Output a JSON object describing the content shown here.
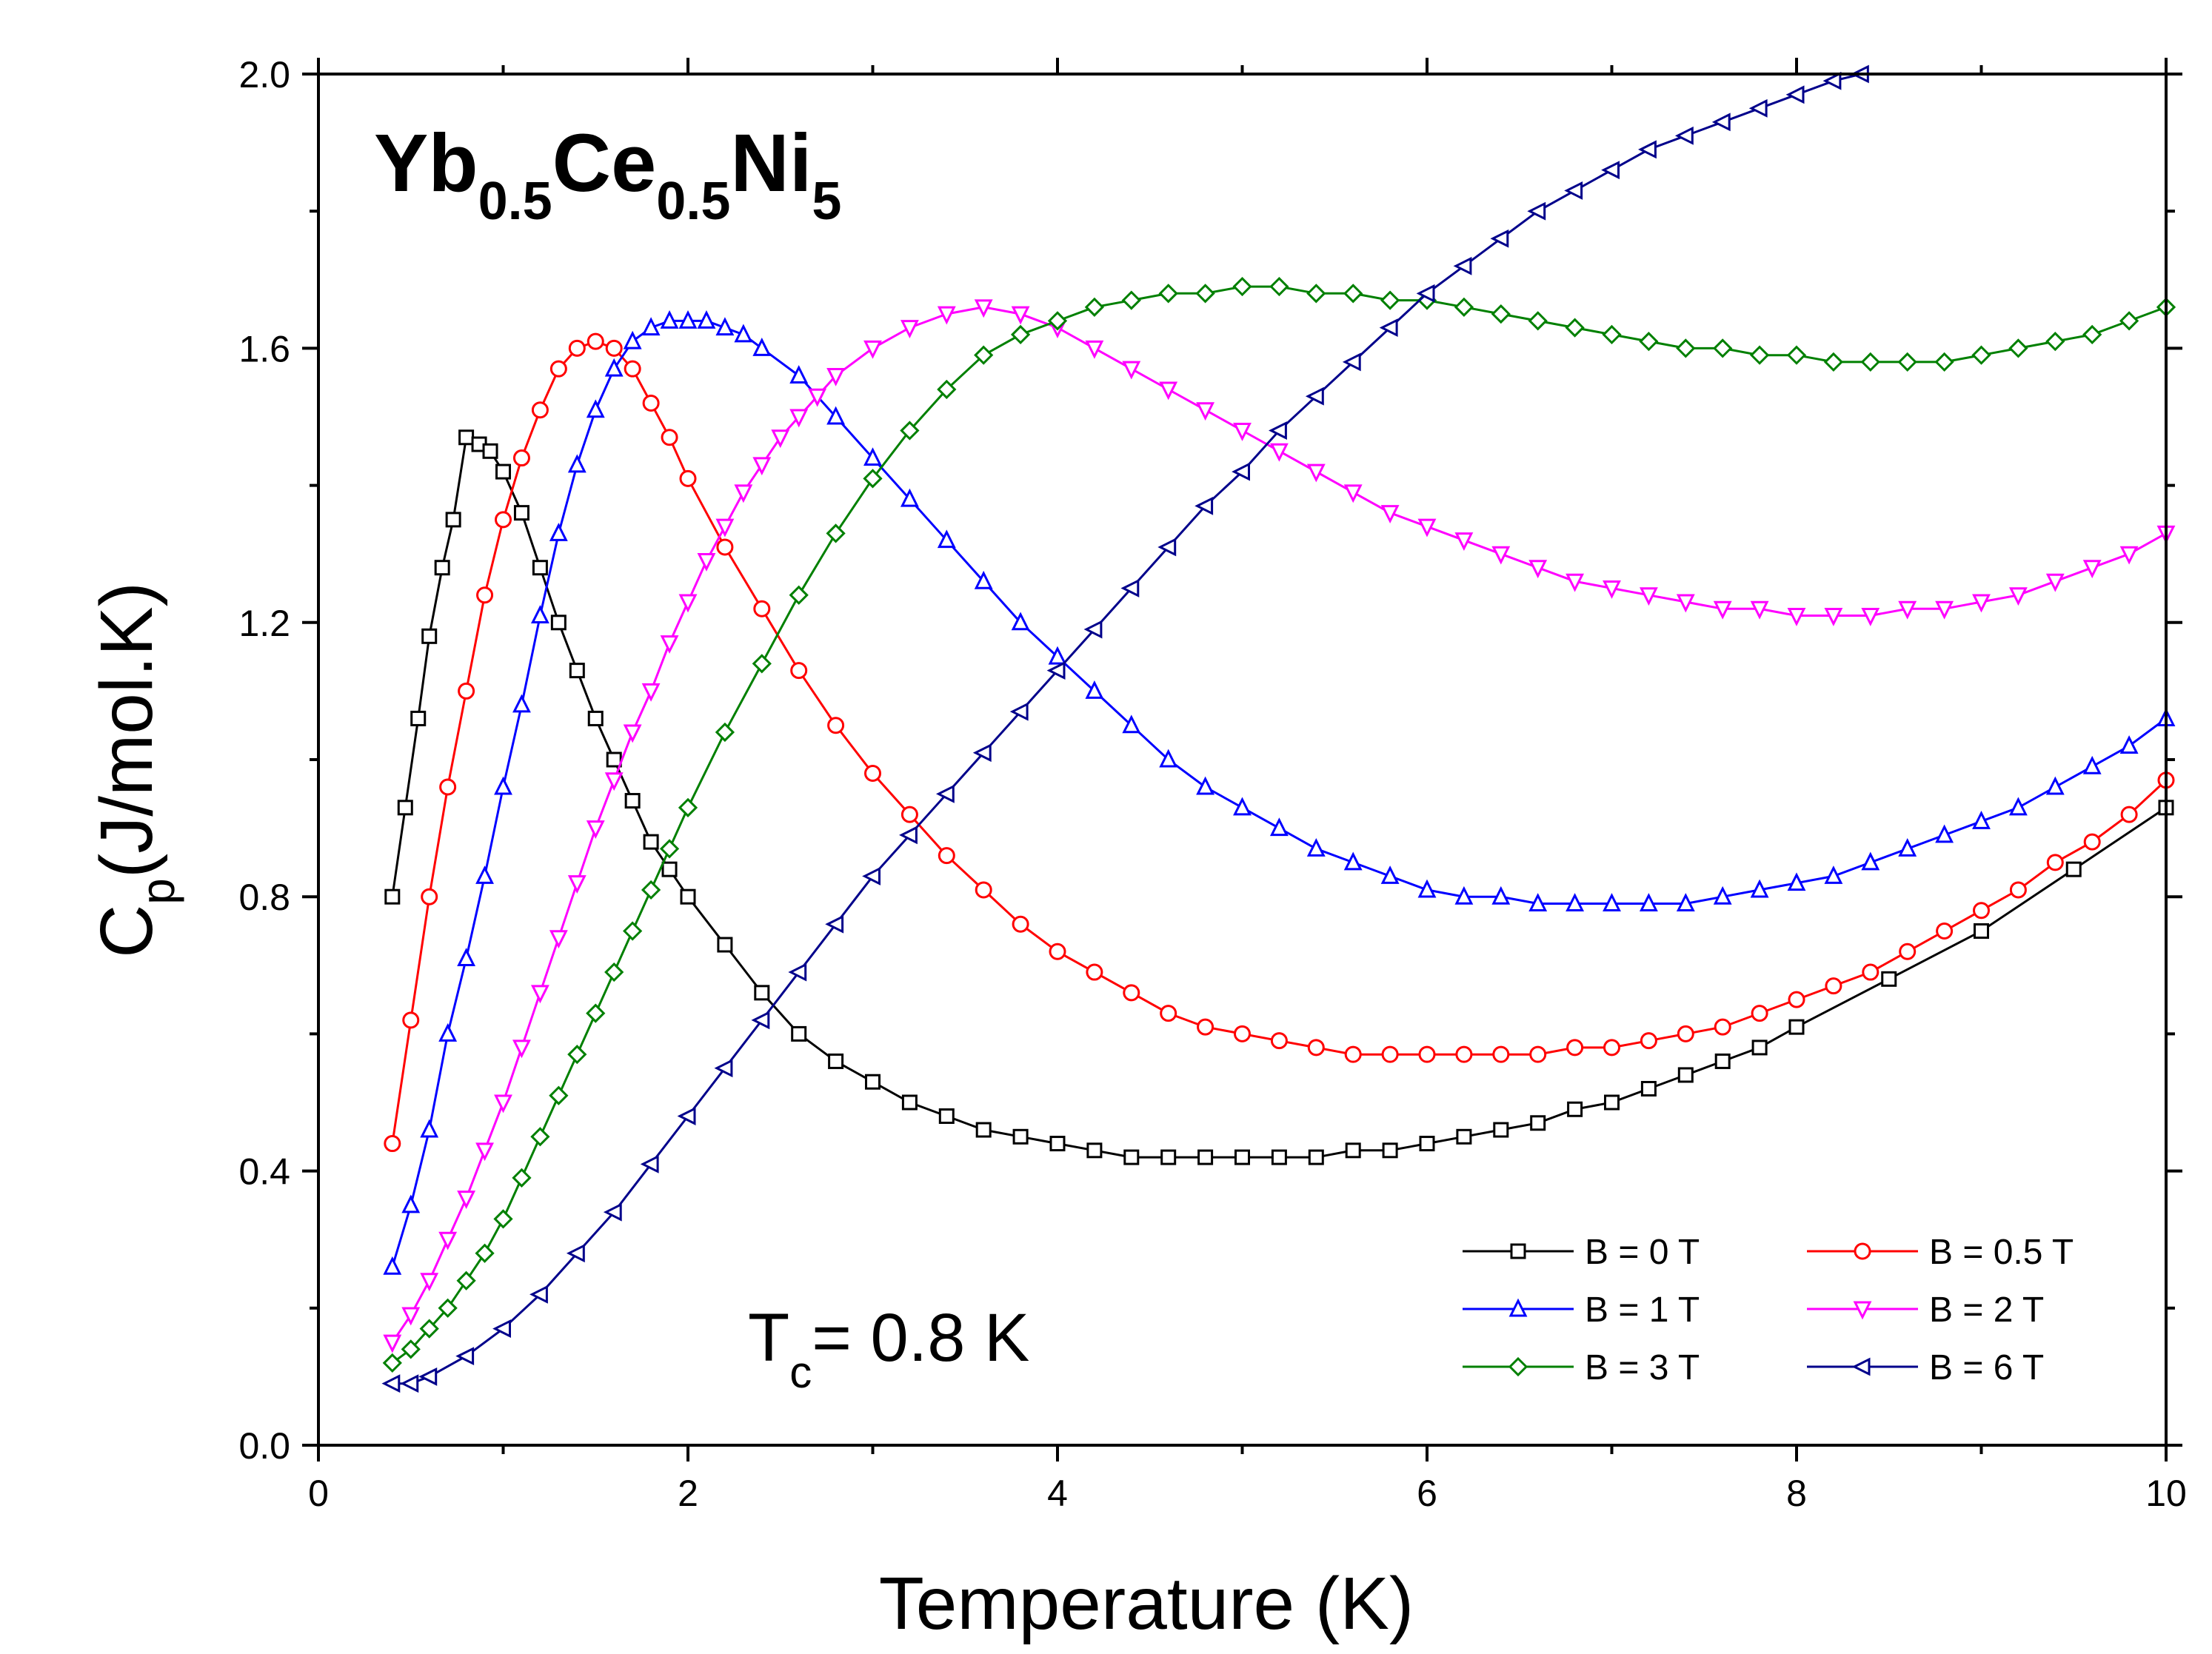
{
  "chart_data": {
    "type": "line",
    "title": "",
    "compound": {
      "base": [
        "Yb",
        "Ce",
        "Ni"
      ],
      "subscripts": [
        "0.5",
        "0.5",
        "5"
      ]
    },
    "annotation": {
      "prefix": "T",
      "subscript": "c",
      "suffix": "= 0.8 K"
    },
    "xlabel": "Temperature (K)",
    "ylabel": {
      "main": "C",
      "subscript": "p",
      "units": "(J/mol.K)"
    },
    "xlim": [
      0,
      10
    ],
    "ylim": [
      0,
      2.0
    ],
    "xticks": [
      0,
      2,
      4,
      6,
      8,
      10
    ],
    "yticks": [
      0.0,
      0.4,
      0.8,
      1.2,
      1.6,
      2.0
    ],
    "ytick_labels": [
      "0.0",
      "0.4",
      "0.8",
      "1.2",
      "1.6",
      "2.0"
    ],
    "xtick_labels": [
      "0",
      "2",
      "4",
      "6",
      "8",
      "10"
    ],
    "legend_position": "bottom-right",
    "series": [
      {
        "name": "B = 0 T",
        "color": "#000000",
        "marker": "square",
        "x": [
          0.4,
          0.47,
          0.54,
          0.6,
          0.67,
          0.73,
          0.8,
          0.87,
          0.93,
          1.0,
          1.1,
          1.2,
          1.3,
          1.4,
          1.5,
          1.6,
          1.7,
          1.8,
          1.9,
          2.0,
          2.2,
          2.4,
          2.6,
          2.8,
          3.0,
          3.2,
          3.4,
          3.6,
          3.8,
          4.0,
          4.2,
          4.4,
          4.6,
          4.8,
          5.0,
          5.2,
          5.4,
          5.6,
          5.8,
          6.0,
          6.2,
          6.4,
          6.6,
          6.8,
          7.0,
          7.2,
          7.4,
          7.6,
          7.8,
          8.0,
          8.5,
          9.0,
          9.5,
          10.0
        ],
        "y": [
          0.8,
          0.93,
          1.06,
          1.18,
          1.28,
          1.35,
          1.47,
          1.46,
          1.45,
          1.42,
          1.36,
          1.28,
          1.2,
          1.13,
          1.06,
          1.0,
          0.94,
          0.88,
          0.84,
          0.8,
          0.73,
          0.66,
          0.6,
          0.56,
          0.53,
          0.5,
          0.48,
          0.46,
          0.45,
          0.44,
          0.43,
          0.42,
          0.42,
          0.42,
          0.42,
          0.42,
          0.42,
          0.43,
          0.43,
          0.44,
          0.45,
          0.46,
          0.47,
          0.49,
          0.5,
          0.52,
          0.54,
          0.56,
          0.58,
          0.61,
          0.68,
          0.75,
          0.84,
          0.93
        ]
      },
      {
        "name": "B = 0.5 T",
        "color": "#ff0000",
        "marker": "circle",
        "x": [
          0.4,
          0.5,
          0.6,
          0.7,
          0.8,
          0.9,
          1.0,
          1.1,
          1.2,
          1.3,
          1.4,
          1.5,
          1.6,
          1.7,
          1.8,
          1.9,
          2.0,
          2.2,
          2.4,
          2.6,
          2.8,
          3.0,
          3.2,
          3.4,
          3.6,
          3.8,
          4.0,
          4.2,
          4.4,
          4.6,
          4.8,
          5.0,
          5.2,
          5.4,
          5.6,
          5.8,
          6.0,
          6.2,
          6.4,
          6.6,
          6.8,
          7.0,
          7.2,
          7.4,
          7.6,
          7.8,
          8.0,
          8.2,
          8.4,
          8.6,
          8.8,
          9.0,
          9.2,
          9.4,
          9.6,
          9.8,
          10.0
        ],
        "y": [
          0.44,
          0.62,
          0.8,
          0.96,
          1.1,
          1.24,
          1.35,
          1.44,
          1.51,
          1.57,
          1.6,
          1.61,
          1.6,
          1.57,
          1.52,
          1.47,
          1.41,
          1.31,
          1.22,
          1.13,
          1.05,
          0.98,
          0.92,
          0.86,
          0.81,
          0.76,
          0.72,
          0.69,
          0.66,
          0.63,
          0.61,
          0.6,
          0.59,
          0.58,
          0.57,
          0.57,
          0.57,
          0.57,
          0.57,
          0.57,
          0.58,
          0.58,
          0.59,
          0.6,
          0.61,
          0.63,
          0.65,
          0.67,
          0.69,
          0.72,
          0.75,
          0.78,
          0.81,
          0.85,
          0.88,
          0.92,
          0.97
        ]
      },
      {
        "name": "B = 1 T",
        "color": "#0000ff",
        "marker": "triangle-up",
        "x": [
          0.4,
          0.5,
          0.6,
          0.7,
          0.8,
          0.9,
          1.0,
          1.1,
          1.2,
          1.3,
          1.4,
          1.5,
          1.6,
          1.7,
          1.8,
          1.9,
          2.0,
          2.1,
          2.2,
          2.3,
          2.4,
          2.6,
          2.8,
          3.0,
          3.2,
          3.4,
          3.6,
          3.8,
          4.0,
          4.2,
          4.4,
          4.6,
          4.8,
          5.0,
          5.2,
          5.4,
          5.6,
          5.8,
          6.0,
          6.2,
          6.4,
          6.6,
          6.8,
          7.0,
          7.2,
          7.4,
          7.6,
          7.8,
          8.0,
          8.2,
          8.4,
          8.6,
          8.8,
          9.0,
          9.2,
          9.4,
          9.6,
          9.8,
          10.0
        ],
        "y": [
          0.26,
          0.35,
          0.46,
          0.6,
          0.71,
          0.83,
          0.96,
          1.08,
          1.21,
          1.33,
          1.43,
          1.51,
          1.57,
          1.61,
          1.63,
          1.64,
          1.64,
          1.64,
          1.63,
          1.62,
          1.6,
          1.56,
          1.5,
          1.44,
          1.38,
          1.32,
          1.26,
          1.2,
          1.15,
          1.1,
          1.05,
          1.0,
          0.96,
          0.93,
          0.9,
          0.87,
          0.85,
          0.83,
          0.81,
          0.8,
          0.8,
          0.79,
          0.79,
          0.79,
          0.79,
          0.79,
          0.8,
          0.81,
          0.82,
          0.83,
          0.85,
          0.87,
          0.89,
          0.91,
          0.93,
          0.96,
          0.99,
          1.02,
          1.06
        ]
      },
      {
        "name": "B = 2 T",
        "color": "#ff00ff",
        "marker": "triangle-down",
        "x": [
          0.4,
          0.5,
          0.6,
          0.7,
          0.8,
          0.9,
          1.0,
          1.1,
          1.2,
          1.3,
          1.4,
          1.5,
          1.6,
          1.7,
          1.8,
          1.9,
          2.0,
          2.1,
          2.2,
          2.3,
          2.4,
          2.5,
          2.6,
          2.7,
          2.8,
          3.0,
          3.2,
          3.4,
          3.6,
          3.8,
          4.0,
          4.2,
          4.4,
          4.6,
          4.8,
          5.0,
          5.2,
          5.4,
          5.6,
          5.8,
          6.0,
          6.2,
          6.4,
          6.6,
          6.8,
          7.0,
          7.2,
          7.4,
          7.6,
          7.8,
          8.0,
          8.2,
          8.4,
          8.6,
          8.8,
          9.0,
          9.2,
          9.4,
          9.6,
          9.8,
          10.0
        ],
        "y": [
          0.15,
          0.19,
          0.24,
          0.3,
          0.36,
          0.43,
          0.5,
          0.58,
          0.66,
          0.74,
          0.82,
          0.9,
          0.97,
          1.04,
          1.1,
          1.17,
          1.23,
          1.29,
          1.34,
          1.39,
          1.43,
          1.47,
          1.5,
          1.53,
          1.56,
          1.6,
          1.63,
          1.65,
          1.66,
          1.65,
          1.63,
          1.6,
          1.57,
          1.54,
          1.51,
          1.48,
          1.45,
          1.42,
          1.39,
          1.36,
          1.34,
          1.32,
          1.3,
          1.28,
          1.26,
          1.25,
          1.24,
          1.23,
          1.22,
          1.22,
          1.21,
          1.21,
          1.21,
          1.22,
          1.22,
          1.23,
          1.24,
          1.26,
          1.28,
          1.3,
          1.33
        ]
      },
      {
        "name": "B = 3 T",
        "color": "#008000",
        "marker": "diamond",
        "x": [
          0.4,
          0.5,
          0.6,
          0.7,
          0.8,
          0.9,
          1.0,
          1.1,
          1.2,
          1.3,
          1.4,
          1.5,
          1.6,
          1.7,
          1.8,
          1.9,
          2.0,
          2.2,
          2.4,
          2.6,
          2.8,
          3.0,
          3.2,
          3.4,
          3.6,
          3.8,
          4.0,
          4.2,
          4.4,
          4.6,
          4.8,
          5.0,
          5.2,
          5.4,
          5.6,
          5.8,
          6.0,
          6.2,
          6.4,
          6.6,
          6.8,
          7.0,
          7.2,
          7.4,
          7.6,
          7.8,
          8.0,
          8.2,
          8.4,
          8.6,
          8.8,
          9.0,
          9.2,
          9.4,
          9.6,
          9.8,
          10.0
        ],
        "y": [
          0.12,
          0.14,
          0.17,
          0.2,
          0.24,
          0.28,
          0.33,
          0.39,
          0.45,
          0.51,
          0.57,
          0.63,
          0.69,
          0.75,
          0.81,
          0.87,
          0.93,
          1.04,
          1.14,
          1.24,
          1.33,
          1.41,
          1.48,
          1.54,
          1.59,
          1.62,
          1.64,
          1.66,
          1.67,
          1.68,
          1.68,
          1.69,
          1.69,
          1.68,
          1.68,
          1.67,
          1.67,
          1.66,
          1.65,
          1.64,
          1.63,
          1.62,
          1.61,
          1.6,
          1.6,
          1.59,
          1.59,
          1.58,
          1.58,
          1.58,
          1.58,
          1.59,
          1.6,
          1.61,
          1.62,
          1.64,
          1.66
        ]
      },
      {
        "name": "B = 6 T",
        "color": "#00008b",
        "marker": "triangle-left",
        "x": [
          0.4,
          0.5,
          0.6,
          0.8,
          1.0,
          1.2,
          1.4,
          1.6,
          1.8,
          2.0,
          2.2,
          2.4,
          2.6,
          2.8,
          3.0,
          3.2,
          3.4,
          3.6,
          3.8,
          4.0,
          4.2,
          4.4,
          4.6,
          4.8,
          5.0,
          5.2,
          5.4,
          5.6,
          5.8,
          6.0,
          6.2,
          6.4,
          6.6,
          6.8,
          7.0,
          7.2,
          7.4,
          7.6,
          7.8,
          8.0,
          8.2,
          8.35
        ],
        "y": [
          0.09,
          0.09,
          0.1,
          0.13,
          0.17,
          0.22,
          0.28,
          0.34,
          0.41,
          0.48,
          0.55,
          0.62,
          0.69,
          0.76,
          0.83,
          0.89,
          0.95,
          1.01,
          1.07,
          1.13,
          1.19,
          1.25,
          1.31,
          1.37,
          1.42,
          1.48,
          1.53,
          1.58,
          1.63,
          1.68,
          1.72,
          1.76,
          1.8,
          1.83,
          1.86,
          1.89,
          1.91,
          1.93,
          1.95,
          1.97,
          1.99,
          2.0
        ]
      }
    ]
  }
}
